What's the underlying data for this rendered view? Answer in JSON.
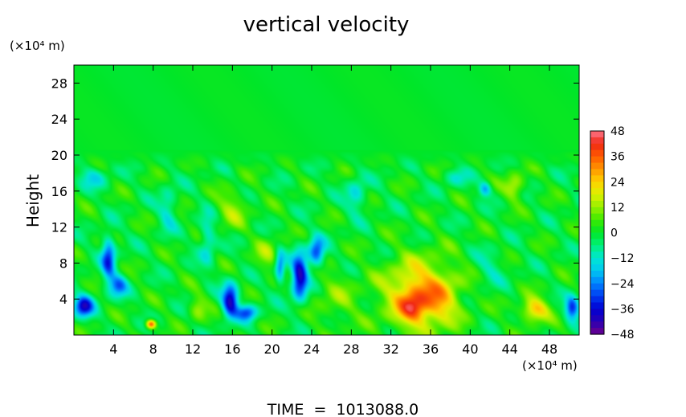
{
  "chart_data": {
    "type": "heatmap",
    "title": "vertical velocity",
    "ylabel": "Height",
    "xlabel": "",
    "x_unit": "(×10⁴ m)",
    "y_unit": "(×10⁴ m)",
    "footer": "TIME  =  1013088.0",
    "xlim": [
      0,
      51
    ],
    "ylim": [
      0,
      30
    ],
    "x_ticks": [
      4,
      8,
      12,
      16,
      20,
      24,
      28,
      32,
      36,
      40,
      44,
      48
    ],
    "y_ticks": [
      4,
      8,
      12,
      16,
      20,
      24,
      28
    ],
    "colorbar": {
      "min": -48,
      "max": 48,
      "ticks": [
        48,
        36,
        24,
        12,
        0,
        -12,
        -24,
        -36,
        -48
      ]
    },
    "features": [
      {
        "x": 35.0,
        "y": 4.5,
        "sx": 3.6,
        "sy": 3.8,
        "amp": 30
      },
      {
        "x": 34.2,
        "y": 3.0,
        "sx": 1.3,
        "sy": 1.6,
        "amp": 18
      },
      {
        "x": 37.0,
        "y": 3.5,
        "sx": 1.5,
        "sy": 2.0,
        "amp": 8
      },
      {
        "x": 46.5,
        "y": 2.8,
        "sx": 1.4,
        "sy": 1.3,
        "amp": 26
      },
      {
        "x": 44.5,
        "y": 16.5,
        "sx": 1.0,
        "sy": 1.4,
        "amp": 16
      },
      {
        "x": 7.8,
        "y": 1.2,
        "sx": 0.5,
        "sy": 0.5,
        "amp": 38
      },
      {
        "x": 12.5,
        "y": 3.0,
        "sx": 0.9,
        "sy": 1.4,
        "amp": 12
      },
      {
        "x": 16.0,
        "y": 14.0,
        "sx": 1.5,
        "sy": 2.0,
        "amp": 12
      },
      {
        "x": 26.5,
        "y": 4.0,
        "sx": 2.2,
        "sy": 3.0,
        "amp": 8
      },
      {
        "x": 19.5,
        "y": 9.0,
        "sx": 1.2,
        "sy": 2.0,
        "amp": 10
      },
      {
        "x": 1.0,
        "y": 3.2,
        "sx": 1.0,
        "sy": 1.2,
        "amp": -36
      },
      {
        "x": 3.5,
        "y": 8.5,
        "sx": 0.7,
        "sy": 2.5,
        "amp": -30
      },
      {
        "x": 4.5,
        "y": 5.5,
        "sx": 0.9,
        "sy": 1.2,
        "amp": -24
      },
      {
        "x": 15.8,
        "y": 3.8,
        "sx": 0.8,
        "sy": 1.8,
        "amp": -40
      },
      {
        "x": 17.5,
        "y": 2.5,
        "sx": 1.0,
        "sy": 0.9,
        "amp": -28
      },
      {
        "x": 22.8,
        "y": 6.5,
        "sx": 0.8,
        "sy": 2.6,
        "amp": -40
      },
      {
        "x": 24.5,
        "y": 9.2,
        "sx": 0.8,
        "sy": 1.6,
        "amp": -30
      },
      {
        "x": 20.8,
        "y": 7.5,
        "sx": 0.5,
        "sy": 1.8,
        "amp": -26
      },
      {
        "x": 50.3,
        "y": 3.0,
        "sx": 0.7,
        "sy": 1.3,
        "amp": -32
      },
      {
        "x": 41.5,
        "y": 16.2,
        "sx": 0.6,
        "sy": 0.8,
        "amp": -20
      },
      {
        "x": 9.5,
        "y": 14.0,
        "sx": 0.9,
        "sy": 2.5,
        "amp": -12
      },
      {
        "x": 13.5,
        "y": 10.5,
        "sx": 0.8,
        "sy": 2.8,
        "amp": -14
      },
      {
        "x": 28.5,
        "y": 15.5,
        "sx": 1.0,
        "sy": 2.0,
        "amp": -14
      },
      {
        "x": 42.0,
        "y": 7.5,
        "sx": 1.5,
        "sy": 2.0,
        "amp": -8
      },
      {
        "x": 2.0,
        "y": 17.5,
        "sx": 1.5,
        "sy": 1.2,
        "amp": -12
      },
      {
        "x": 38.5,
        "y": 17.5,
        "sx": 1.3,
        "sy": 1.0,
        "amp": -10
      }
    ]
  }
}
